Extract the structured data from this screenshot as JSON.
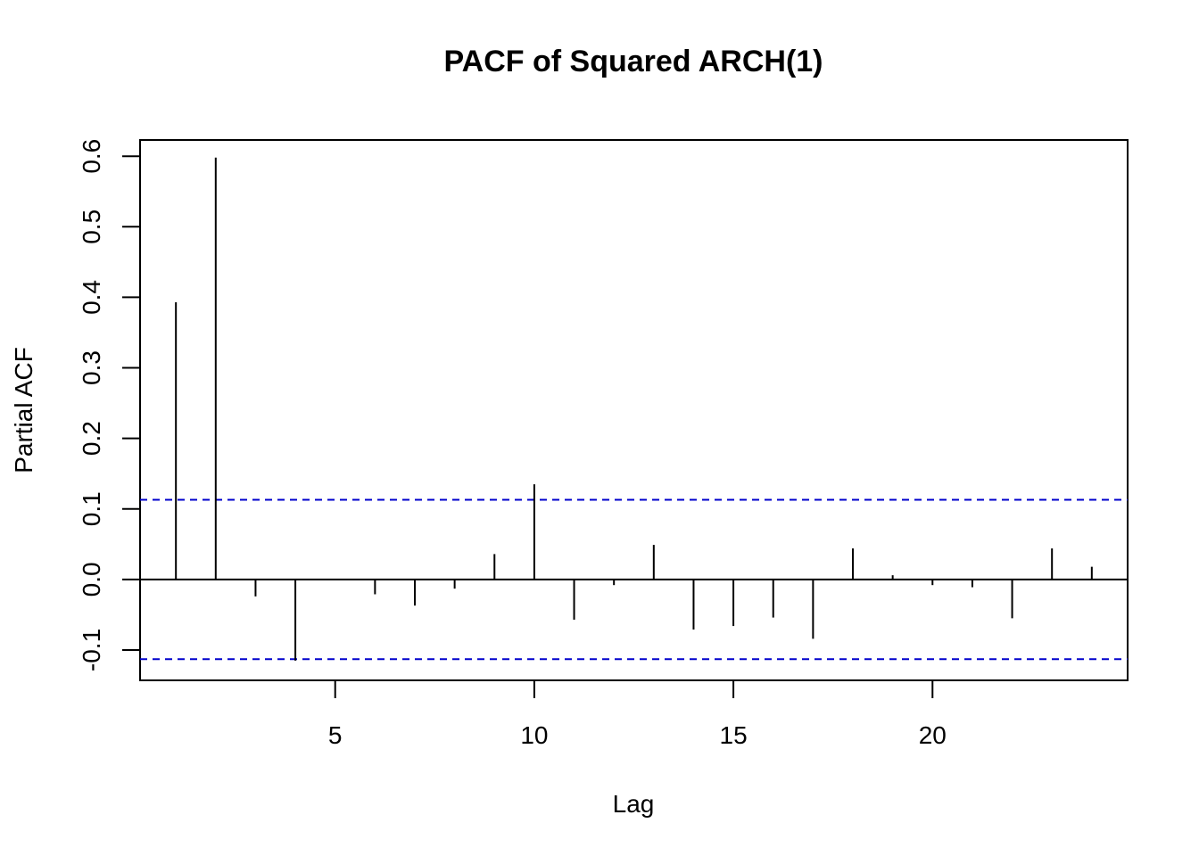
{
  "chart_data": {
    "type": "bar",
    "title": "PACF of Squared ARCH(1)",
    "xlabel": "Lag",
    "ylabel": "Partial ACF",
    "xlim": [
      0.1,
      24.9
    ],
    "ylim": [
      -0.143,
      0.623
    ],
    "x_ticks": [
      5,
      10,
      15,
      20
    ],
    "y_ticks": [
      -0.1,
      0.0,
      0.1,
      0.2,
      0.3,
      0.4,
      0.5,
      0.6
    ],
    "x_tick_labels": [
      "5",
      "10",
      "15",
      "20"
    ],
    "y_tick_labels": [
      "-0.1",
      "0.0",
      "0.1",
      "0.2",
      "0.3",
      "0.4",
      "0.5",
      "0.6"
    ],
    "lags": [
      1,
      2,
      3,
      4,
      5,
      6,
      7,
      8,
      9,
      10,
      11,
      12,
      13,
      14,
      15,
      16,
      17,
      18,
      19,
      20,
      21,
      22,
      23,
      24
    ],
    "values": [
      0.393,
      0.598,
      -0.024,
      -0.115,
      0.0,
      -0.021,
      -0.037,
      -0.013,
      0.036,
      0.135,
      -0.057,
      -0.008,
      0.049,
      -0.071,
      -0.066,
      -0.054,
      -0.084,
      0.044,
      0.006,
      -0.008,
      -0.011,
      -0.055,
      0.044,
      0.018
    ],
    "confidence_bound": 0.113,
    "colors": {
      "bars": "#000000",
      "confidence": "#0000cc",
      "zero_line": "#000000"
    },
    "grid": false
  }
}
